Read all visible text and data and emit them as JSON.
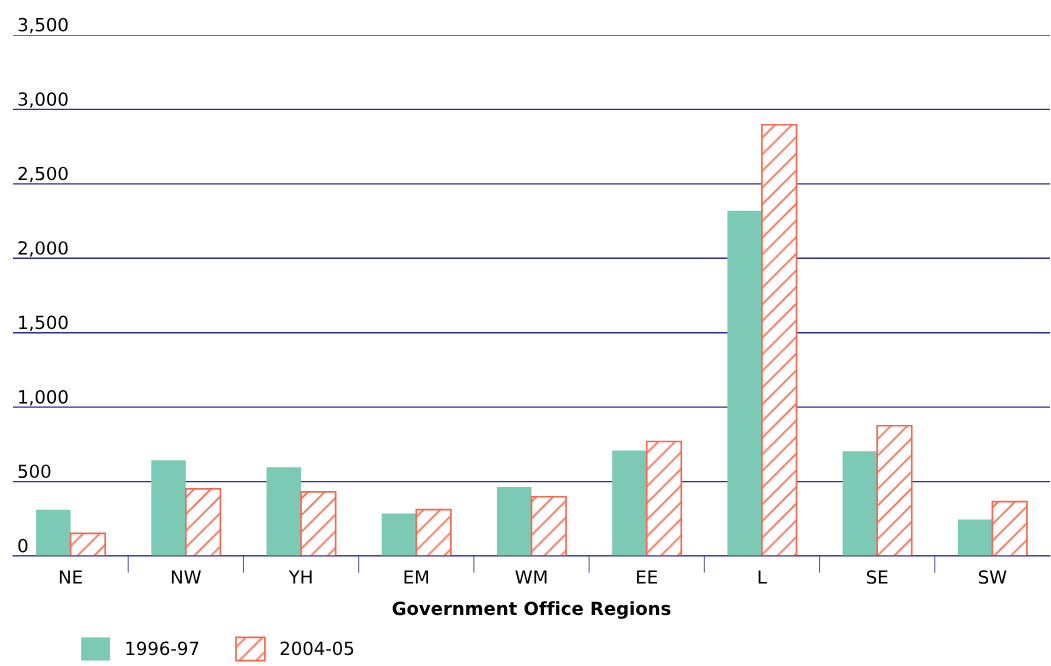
{
  "chart_data": {
    "type": "bar",
    "xlabel": "Government Office Regions",
    "categories": [
      "NE",
      "NW",
      "YH",
      "EM",
      "WM",
      "EE",
      "L",
      "SE",
      "SW"
    ],
    "series": [
      {
        "name": "1996-97",
        "color": "#7ccab5",
        "values": [
          311,
          643,
          597,
          285,
          464,
          709,
          2320,
          703,
          245
        ]
      },
      {
        "name": "2004-05",
        "color": "#f26b4f",
        "values": [
          152,
          451,
          431,
          311,
          398,
          769,
          2897,
          875,
          365
        ]
      }
    ],
    "ylim": [
      0,
      3500
    ],
    "yticks": [
      0,
      {
        "value": 500,
        "label": "500"
      },
      {
        "value": 1000,
        "label": "1,000"
      },
      {
        "value": 1500,
        "label": "1,500"
      },
      {
        "value": 2000,
        "label": "2,000"
      },
      {
        "value": 2500,
        "label": "2,500"
      },
      {
        "value": 3000,
        "label": "3,000"
      },
      {
        "value": 3500,
        "label": "3,500"
      }
    ],
    "grid": "y",
    "legend": "bottom left"
  }
}
